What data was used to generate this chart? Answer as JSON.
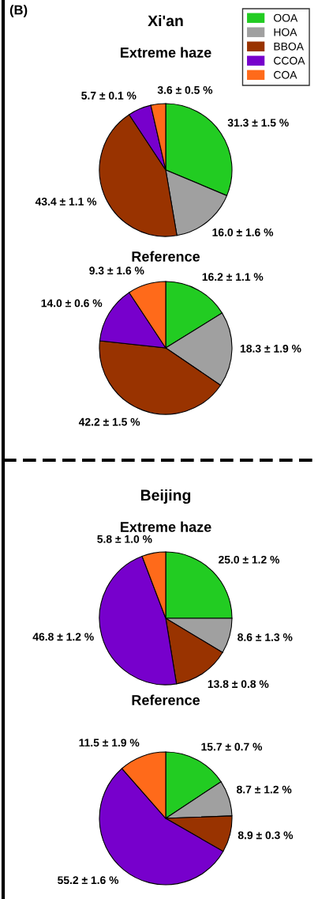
{
  "chart_data": [
    {
      "type": "pie",
      "title": "Xi'an",
      "subtitle": "Extreme haze",
      "annotations": [
        "(B)"
      ],
      "legend": "top right",
      "categories": [
        "OOA",
        "HOA",
        "BBOA",
        "CCOA",
        "COA"
      ],
      "values": [
        31.3,
        16.0,
        43.4,
        5.7,
        3.6
      ],
      "value_labels": [
        "31.3 ± 1.5 %",
        "16.0 ± 1.6 %",
        "43.4 ± 1.1 %",
        "5.7 ± 0.1 %",
        "3.6 ± 0.5 %"
      ],
      "colors": [
        "#22cc22",
        "#a0a0a0",
        "#993300",
        "#7700cc",
        "#ff6a1a"
      ]
    },
    {
      "type": "pie",
      "title": "Reference",
      "values": [
        16.2,
        18.3,
        42.2,
        14.0,
        9.3
      ],
      "value_labels": [
        "16.2 ± 1.1 %",
        "18.3 ± 1.9 %",
        "42.2 ± 1.5 %",
        "14.0 ± 0.6 %",
        "9.3 ± 1.6 %"
      ],
      "colors": [
        "#22cc22",
        "#a0a0a0",
        "#993300",
        "#7700cc",
        "#ff6a1a"
      ]
    },
    {
      "type": "pie",
      "title": "Beijing",
      "subtitle": "Extreme haze",
      "values": [
        25.0,
        8.6,
        13.8,
        46.8,
        5.8
      ],
      "value_labels": [
        "25.0 ± 1.2 %",
        "8.6 ± 1.3 %",
        "13.8 ± 0.8 %",
        "46.8 ± 1.2 %",
        "5.8 ± 1.0 %"
      ],
      "colors": [
        "#22cc22",
        "#a0a0a0",
        "#993300",
        "#7700cc",
        "#ff6a1a"
      ]
    },
    {
      "type": "pie",
      "title": "Reference",
      "values": [
        15.7,
        8.7,
        8.9,
        55.2,
        11.5
      ],
      "value_labels": [
        "15.7 ± 0.7 %",
        "8.7 ± 1.2 %",
        "8.9 ± 0.3 %",
        "55.2 ± 1.6 %",
        "11.5 ± 1.9 %"
      ],
      "colors": [
        "#22cc22",
        "#a0a0a0",
        "#993300",
        "#7700cc",
        "#ff6a1a"
      ]
    }
  ]
}
